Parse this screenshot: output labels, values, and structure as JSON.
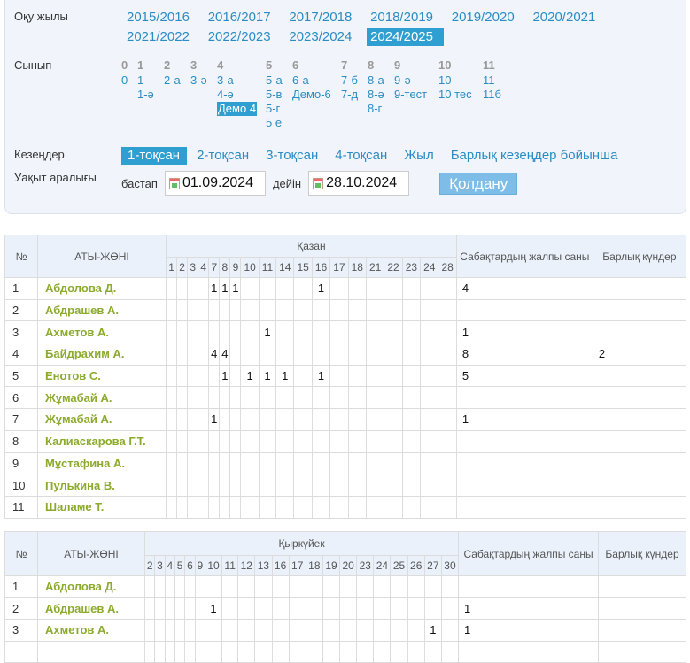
{
  "filters": {
    "year_label": "Оқу жылы",
    "years": [
      "2015/2016",
      "2016/2017",
      "2017/2018",
      "2018/2019",
      "2019/2020",
      "2020/2021",
      "2021/2022",
      "2022/2023",
      "2023/2024",
      "2024/2025"
    ],
    "selected_year": "2024/2025",
    "class_label": "Сынып",
    "class_groups": [
      {
        "grade": "0",
        "classes": [
          "0"
        ]
      },
      {
        "grade": "1",
        "classes": [
          "1",
          "1-ә"
        ]
      },
      {
        "grade": "2",
        "classes": [
          "2-а"
        ]
      },
      {
        "grade": "3",
        "classes": [
          "3-ә"
        ]
      },
      {
        "grade": "4",
        "classes": [
          "3-а",
          "4-ә",
          "Демо 4"
        ]
      },
      {
        "grade": "5",
        "classes": [
          "5-а",
          "5-в",
          "5-г",
          "5 е"
        ]
      },
      {
        "grade": "6",
        "classes": [
          "6-а",
          "Демо-6"
        ]
      },
      {
        "grade": "7",
        "classes": [
          "7-б",
          "7-д"
        ]
      },
      {
        "grade": "8",
        "classes": [
          "8-а",
          "8-ә",
          "8-г"
        ]
      },
      {
        "grade": "9",
        "classes": [
          "9-ә",
          "9-тест"
        ]
      },
      {
        "grade": "10",
        "classes": [
          "10",
          "10 тес"
        ]
      },
      {
        "grade": "11",
        "classes": [
          "11",
          "11б"
        ]
      }
    ],
    "selected_class": "Демо 4",
    "period_label": "Кезеңдер",
    "periods": [
      "1-тоқсан",
      "2-тоқсан",
      "3-тоқсан",
      "4-тоқсан",
      "Жыл",
      "Барлық кезеңдер бойынша"
    ],
    "selected_period": "1-тоқсан",
    "range_label": "Уақыт аралығы",
    "from_label": "бастап",
    "from_value": "01.09.2024",
    "to_label": "дейін",
    "to_value": "28.10.2024",
    "apply_label": "Қолдану",
    "accent": "#2e9fd0"
  },
  "tables": [
    {
      "month": "Қазан",
      "col_no": "№",
      "col_name": "АТЫ-ЖӨНІ",
      "col_total": "Сабақтардың жалпы саны",
      "col_all_days": "Барлық күндер",
      "days": [
        "1",
        "2",
        "3",
        "4",
        "7",
        "8",
        "9",
        "10",
        "11",
        "14",
        "15",
        "16",
        "17",
        "18",
        "21",
        "22",
        "23",
        "24",
        "28"
      ],
      "rows": [
        {
          "no": "1",
          "name": "Абдолова Д.",
          "marks": {
            "7": "1",
            "8": "1",
            "9": "1",
            "16": "1"
          },
          "total": "4",
          "all_days": ""
        },
        {
          "no": "2",
          "name": "Абдрашев А.",
          "marks": {},
          "total": "",
          "all_days": ""
        },
        {
          "no": "3",
          "name": "Ахметов А.",
          "marks": {
            "11": "1"
          },
          "total": "1",
          "all_days": ""
        },
        {
          "no": "4",
          "name": "Байдрахим А.",
          "marks": {
            "7": "4",
            "8": "4"
          },
          "total": "8",
          "all_days": "2"
        },
        {
          "no": "5",
          "name": "Енотов С.",
          "marks": {
            "8": "1",
            "10": "1",
            "11": "1",
            "14": "1",
            "16": "1"
          },
          "total": "5",
          "all_days": ""
        },
        {
          "no": "6",
          "name": "Жұмабай А.",
          "marks": {},
          "total": "",
          "all_days": ""
        },
        {
          "no": "7",
          "name": "Жұмабай А.",
          "marks": {
            "7": "1"
          },
          "total": "1",
          "all_days": ""
        },
        {
          "no": "8",
          "name": "Калиаскарова Г.Т.",
          "marks": {},
          "total": "",
          "all_days": ""
        },
        {
          "no": "9",
          "name": "Мұстафина А.",
          "marks": {},
          "total": "",
          "all_days": ""
        },
        {
          "no": "10",
          "name": "Пулькина В.",
          "marks": {},
          "total": "",
          "all_days": ""
        },
        {
          "no": "11",
          "name": "Шаламе Т.",
          "marks": {},
          "total": "",
          "all_days": ""
        }
      ]
    },
    {
      "month": "Қыркүйек",
      "col_no": "№",
      "col_name": "АТЫ-ЖӨНІ",
      "col_total": "Сабақтардың жалпы саны",
      "col_all_days": "Барлық күндер",
      "days": [
        "2",
        "3",
        "4",
        "5",
        "6",
        "9",
        "10",
        "11",
        "12",
        "13",
        "16",
        "17",
        "18",
        "19",
        "20",
        "23",
        "24",
        "25",
        "26",
        "27",
        "30"
      ],
      "rows": [
        {
          "no": "1",
          "name": "Абдолова Д.",
          "marks": {},
          "total": "",
          "all_days": ""
        },
        {
          "no": "2",
          "name": "Абдрашев А.",
          "marks": {
            "10": "1"
          },
          "total": "1",
          "all_days": ""
        },
        {
          "no": "3",
          "name": "Ахметов А.",
          "marks": {
            "27": "1"
          },
          "total": "1",
          "all_days": ""
        },
        {
          "no": "",
          "name": "",
          "marks": {},
          "total": "",
          "all_days": ""
        }
      ]
    }
  ]
}
